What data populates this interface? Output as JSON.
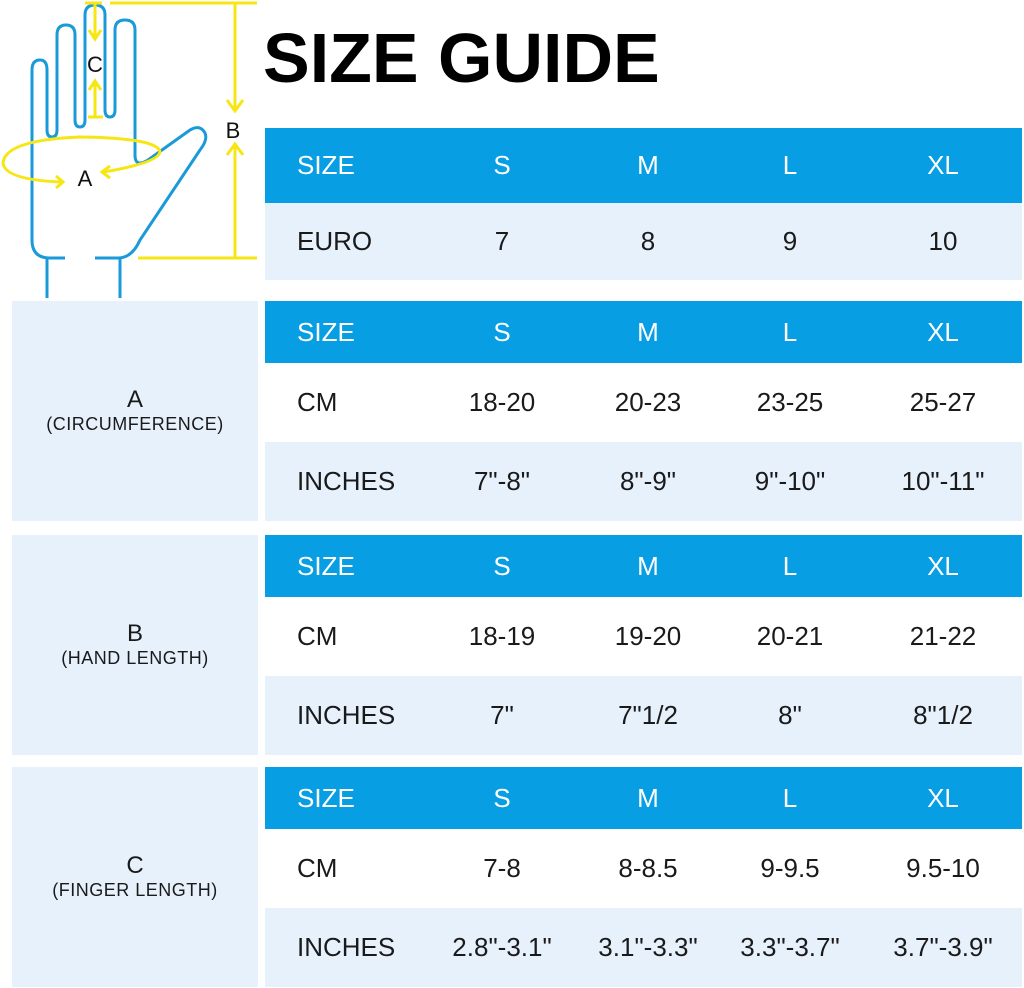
{
  "title": "SIZE GUIDE",
  "colors": {
    "header": "#079ee4",
    "row_light": "#e7f1fc",
    "measure_lines": "#f5e614",
    "hand_outline": "#1a9ad8"
  },
  "diagram": {
    "label_a": "A",
    "label_b": "B",
    "label_c": "C"
  },
  "euro_table": {
    "header": [
      "SIZE",
      "S",
      "M",
      "L",
      "XL"
    ],
    "rows": [
      [
        "EURO",
        "7",
        "8",
        "9",
        "10"
      ]
    ]
  },
  "sections": [
    {
      "letter": "A",
      "caption": "(CIRCUMFERENCE)",
      "header": [
        "SIZE",
        "S",
        "M",
        "L",
        "XL"
      ],
      "rows": [
        [
          "CM",
          "18-20",
          "20-23",
          "23-25",
          "25-27"
        ],
        [
          "INCHES",
          "7\"-8\"",
          "8\"-9\"",
          "9\"-10\"",
          "10\"-11\""
        ]
      ]
    },
    {
      "letter": "B",
      "caption": "(HAND LENGTH)",
      "header": [
        "SIZE",
        "S",
        "M",
        "L",
        "XL"
      ],
      "rows": [
        [
          "CM",
          "18-19",
          "19-20",
          "20-21",
          "21-22"
        ],
        [
          "INCHES",
          "7\"",
          "7\"1/2",
          "8\"",
          "8\"1/2"
        ]
      ]
    },
    {
      "letter": "C",
      "caption": "(FINGER LENGTH)",
      "header": [
        "SIZE",
        "S",
        "M",
        "L",
        "XL"
      ],
      "rows": [
        [
          "CM",
          "7-8",
          "8-8.5",
          "9-9.5",
          "9.5-10"
        ],
        [
          "INCHES",
          "2.8\"-3.1\"",
          "3.1\"-3.3\"",
          "3.3\"-3.7\"",
          "3.7\"-3.9\""
        ]
      ]
    }
  ]
}
